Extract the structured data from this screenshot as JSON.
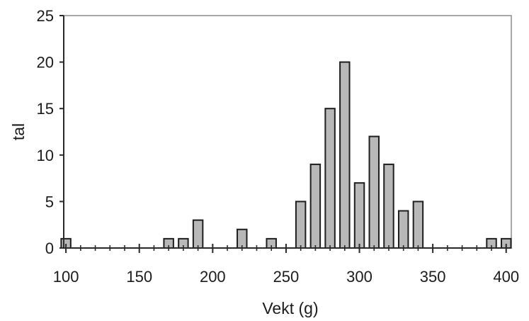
{
  "chart_data": {
    "type": "bar",
    "title": "",
    "xlabel": "Vekt (g)",
    "ylabel": "tal",
    "xlim": [
      100,
      400
    ],
    "ylim": [
      0,
      25
    ],
    "x_ticks": [
      100,
      150,
      200,
      250,
      300,
      350,
      400
    ],
    "y_ticks": [
      0,
      5,
      10,
      15,
      20,
      25
    ],
    "x_minor_step": 10,
    "bar_width_units": 6.5,
    "grid": false,
    "legend": "none",
    "colors": {
      "bar_fill": "#b8b8b8",
      "bar_stroke": "#1e1e1e",
      "axis": "#2a2a2a",
      "frame": "#8a8a8a",
      "text": "#1b1b1b"
    },
    "series": [
      {
        "x": [
          100,
          170,
          180,
          190,
          220,
          240,
          260,
          270,
          280,
          290,
          300,
          310,
          320,
          330,
          340,
          390,
          400
        ],
        "values": [
          1,
          1,
          1,
          3,
          2,
          1,
          5,
          9,
          15,
          20,
          7,
          12,
          9,
          4,
          5,
          1,
          1
        ]
      }
    ]
  }
}
